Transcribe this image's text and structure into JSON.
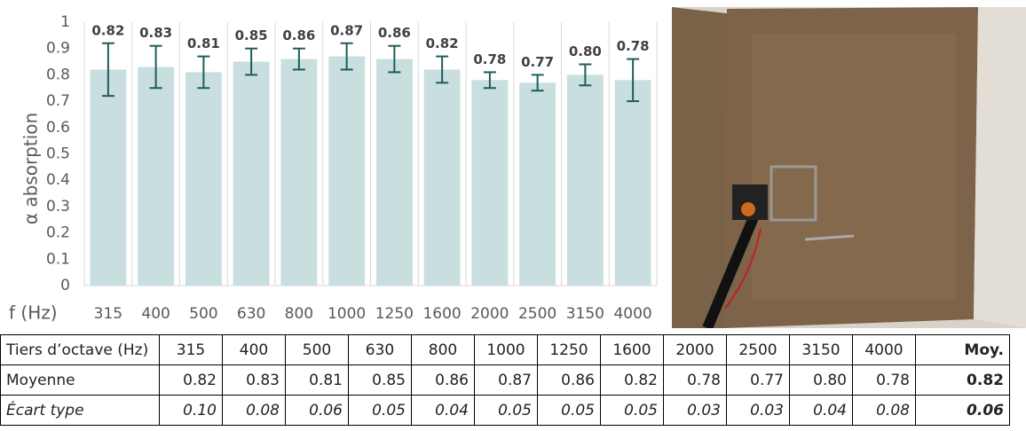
{
  "chart_data": {
    "type": "bar",
    "y_label": "α absorption",
    "x_label": "f (Hz)",
    "categories": [
      "315",
      "400",
      "500",
      "630",
      "800",
      "1000",
      "1250",
      "1600",
      "2000",
      "2500",
      "3150",
      "4000"
    ],
    "values": [
      0.82,
      0.83,
      0.81,
      0.85,
      0.86,
      0.87,
      0.86,
      0.82,
      0.78,
      0.77,
      0.8,
      0.78
    ],
    "value_labels": [
      "0.82",
      "0.83",
      "0.81",
      "0.85",
      "0.86",
      "0.87",
      "0.86",
      "0.82",
      "0.78",
      "0.77",
      "0.80",
      "0.78"
    ],
    "errors": [
      0.1,
      0.08,
      0.06,
      0.05,
      0.04,
      0.05,
      0.05,
      0.05,
      0.03,
      0.03,
      0.04,
      0.08
    ],
    "color": "#c8dedf",
    "error_color": "#1f5c5c",
    "ylim": [
      0,
      1
    ],
    "yticks": [
      0,
      0.1,
      0.2,
      0.3,
      0.4,
      0.5,
      0.6,
      0.7,
      0.8,
      0.9,
      1
    ],
    "grid": "vertical"
  },
  "table": {
    "header": [
      "Tiers d’octave (Hz)",
      "315",
      "400",
      "500",
      "630",
      "800",
      "1000",
      "1250",
      "1600",
      "2000",
      "2500",
      "3150",
      "4000",
      "Moy."
    ],
    "rows": [
      [
        "Moyenne",
        "0.82",
        "0.83",
        "0.81",
        "0.85",
        "0.86",
        "0.87",
        "0.86",
        "0.82",
        "0.78",
        "0.77",
        "0.80",
        "0.78",
        "0.82"
      ],
      [
        "Écart type",
        "0.10",
        "0.08",
        "0.06",
        "0.05",
        "0.04",
        "0.05",
        "0.05",
        "0.05",
        "0.03",
        "0.03",
        "0.04",
        "0.08",
        "0.06"
      ]
    ]
  }
}
